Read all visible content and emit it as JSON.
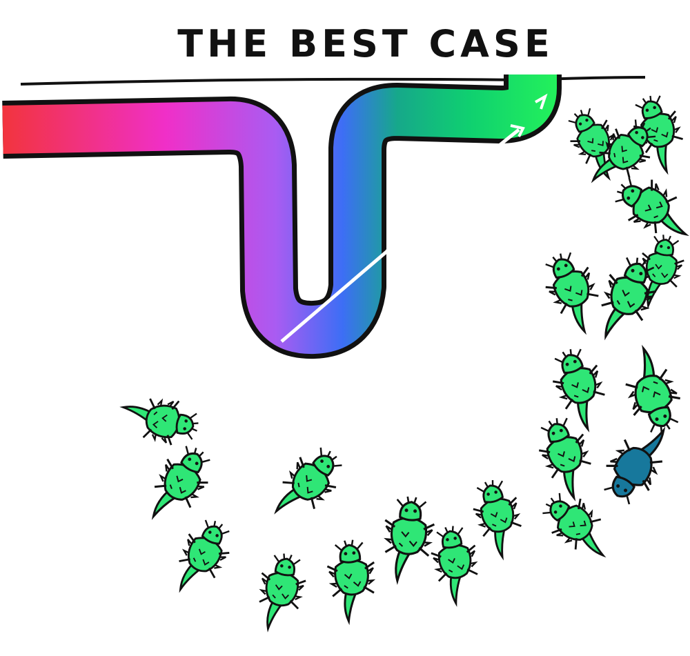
{
  "title": "THE BEST CASE",
  "colors": {
    "pipe_gradient": [
      "#f2343b",
      "#f02fc8",
      "#a95cf2",
      "#3d6ef5",
      "#16a88a",
      "#0fd070",
      "#22ef5c"
    ],
    "lizard_fill": "#2fe676",
    "lizard_shadow": "#16a85a",
    "odd_lizard_fill": "#17789c",
    "outline": "#111111"
  },
  "icons": {
    "lizard": "horned-lizard-icon",
    "odd_lizard": "blue-horned-lizard-icon",
    "arrow": "arrow-icon"
  }
}
